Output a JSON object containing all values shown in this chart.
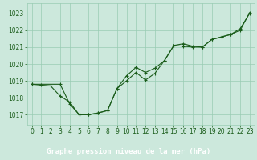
{
  "title": "Graphe pression niveau de la mer (hPa)",
  "bg_color": "#cce8dc",
  "plot_bg_color": "#cce8dc",
  "grid_color": "#99ccb3",
  "line_color": "#1a5c1a",
  "label_bg_color": "#2d6e2d",
  "label_text_color": "#ffffff",
  "xlim": [
    -0.5,
    23.5
  ],
  "ylim": [
    1016.4,
    1023.6
  ],
  "yticks": [
    1017,
    1018,
    1019,
    1020,
    1021,
    1022,
    1023
  ],
  "xticks": [
    0,
    1,
    2,
    3,
    4,
    5,
    6,
    7,
    8,
    9,
    10,
    11,
    12,
    13,
    14,
    15,
    16,
    17,
    18,
    19,
    20,
    21,
    22,
    23
  ],
  "line1_x": [
    0,
    1,
    2,
    3,
    4,
    5,
    6,
    7,
    8,
    9,
    10,
    11,
    12,
    13,
    14,
    15,
    16,
    17,
    18,
    19,
    20,
    21,
    22,
    23
  ],
  "line1_y": [
    1018.8,
    1018.75,
    1018.7,
    1018.1,
    1017.75,
    1017.0,
    1017.0,
    1017.1,
    1017.25,
    1018.55,
    1019.0,
    1019.5,
    1019.05,
    1019.45,
    1020.2,
    1021.1,
    1021.2,
    1021.05,
    1021.0,
    1021.45,
    1021.6,
    1021.75,
    1022.1,
    1023.0
  ],
  "line2_x": [
    0,
    3,
    4,
    5,
    6,
    7,
    8,
    9,
    10,
    11,
    12,
    13,
    14,
    15,
    16,
    17,
    18,
    19,
    20,
    21,
    22,
    23
  ],
  "line2_y": [
    1018.8,
    1018.8,
    1017.65,
    1017.0,
    1017.0,
    1017.1,
    1017.25,
    1018.55,
    1019.3,
    1019.8,
    1019.5,
    1019.75,
    1020.2,
    1021.1,
    1021.05,
    1021.0,
    1021.0,
    1021.45,
    1021.6,
    1021.75,
    1022.0,
    1023.05
  ],
  "tick_fontsize": 5.5,
  "label_fontsize": 6.5
}
